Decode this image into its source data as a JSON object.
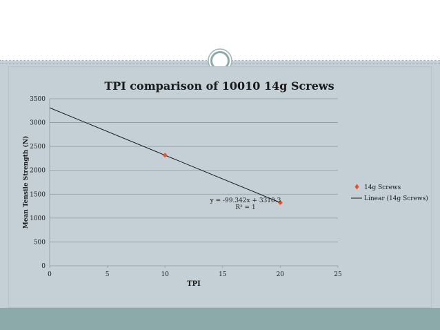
{
  "colors": {
    "panel": "#c5d0d6",
    "footer": "#8caaaa",
    "marker": "#e0532b",
    "trendline": "#1a1a1a",
    "grid": "#8d989e"
  },
  "chart_data": {
    "type": "scatter",
    "title": "TPI comparison of 10010 14g Screws",
    "xlabel": "TPI",
    "ylabel": "Mean Tensile Strength (N)",
    "xlim": [
      0,
      25
    ],
    "ylim": [
      0,
      3500
    ],
    "x_ticks": [
      "0",
      "5",
      "10",
      "15",
      "20",
      "25"
    ],
    "y_ticks": [
      "0",
      "500",
      "1000",
      "1500",
      "2000",
      "2500",
      "3000",
      "3500"
    ],
    "grid": "horizontal",
    "legend_position": "right",
    "series": [
      {
        "name": "14g Screws",
        "points": [
          {
            "x": 10,
            "y": 2317
          },
          {
            "x": 20,
            "y": 1323
          }
        ]
      }
    ],
    "trendline": {
      "name": "Linear (14g Screws)",
      "slope": -99.342,
      "intercept": 3310.3,
      "x_range": [
        0,
        20
      ],
      "equation": "y = -99.342x + 3310.3",
      "r_squared": "R² = 1"
    }
  }
}
